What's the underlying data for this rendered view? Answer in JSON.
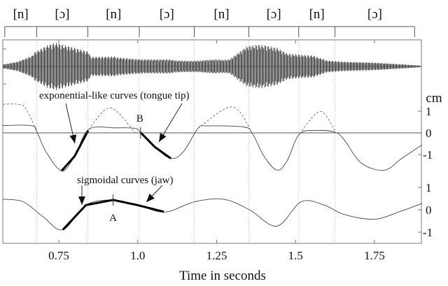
{
  "segments": {
    "labels": [
      "[n]",
      "[ɔ]",
      "[n]",
      "[ɔ]",
      "[n]",
      "[ɔ]",
      "[n]",
      "[ɔ]"
    ],
    "boundaries": [
      0.579,
      0.68,
      0.842,
      1.005,
      1.179,
      1.352,
      1.51,
      1.625,
      1.877
    ]
  },
  "chart_data": {
    "type": "line",
    "xlabel": "Time in seconds",
    "xlim": [
      0.573,
      1.9
    ],
    "xticks": [
      0.75,
      1.0,
      1.25,
      1.5,
      1.75
    ],
    "xtick_labels": [
      "0.75",
      "1.0",
      "1.25",
      "1.5",
      "1.75"
    ],
    "unit_label": "cm",
    "grid": "vertical dotted lines at segment boundaries",
    "waveform": {
      "t": [
        0.573,
        0.619,
        0.664,
        0.673,
        0.714,
        0.741,
        0.845,
        0.85,
        0.927,
        0.936,
        0.982,
        1.018,
        1.104,
        1.118,
        1.159,
        1.2,
        1.209,
        1.245,
        1.273,
        1.291,
        1.345,
        1.382,
        1.4,
        1.443,
        1.473,
        1.493,
        1.531,
        1.557,
        1.6,
        1.65,
        1.75,
        1.85,
        1.9
      ],
      "amplitude": [
        0.08,
        0.2,
        0.45,
        0.6,
        0.9,
        1.0,
        0.62,
        0.4,
        0.42,
        0.38,
        0.33,
        0.3,
        0.3,
        0.26,
        0.24,
        0.25,
        0.27,
        0.3,
        0.28,
        0.3,
        0.85,
        0.92,
        0.9,
        0.78,
        0.55,
        0.52,
        0.48,
        0.46,
        0.25,
        0.2,
        0.16,
        0.08,
        0.03
      ]
    },
    "tongue_tip": {
      "ylim": [
        -2,
        1.6
      ],
      "yticks": [
        1,
        0,
        -1
      ],
      "ytick_labels": [
        "1",
        "0",
        "-1"
      ],
      "t": [
        0.573,
        0.664,
        0.682,
        0.709,
        0.759,
        0.8,
        0.845,
        0.927,
        0.991,
        1.009,
        1.054,
        1.105,
        1.145,
        1.191,
        1.218,
        1.336,
        1.364,
        1.4,
        1.441,
        1.473,
        1.513,
        1.573,
        1.627,
        1.654,
        1.709,
        1.781,
        1.836,
        1.9
      ],
      "y": [
        0.34,
        0.33,
        0.0,
        -0.86,
        -1.75,
        -1.08,
        0.16,
        0.23,
        0.21,
        0.02,
        -0.65,
        -1.18,
        -0.86,
        0.21,
        0.32,
        0.27,
        -0.05,
        -1.08,
        -1.72,
        -1.29,
        -0.05,
        0.11,
        0.02,
        -0.32,
        -1.4,
        -1.72,
        -1.18,
        -0.56
      ],
      "highlighted_ranges": [
        [
          0.759,
          0.845
        ],
        [
          1.009,
          1.105
        ]
      ],
      "dashed_extensions": [
        {
          "t": [
            0.573,
            0.618,
            0.645,
            0.682
          ],
          "y": [
            1.32,
            1.32,
            1.13,
            0.0
          ]
        },
        {
          "t": [
            0.845,
            0.913,
            0.991
          ],
          "y": [
            0.16,
            1.15,
            0.02
          ]
        },
        {
          "t": [
            1.191,
            1.3,
            1.364
          ],
          "y": [
            0.21,
            1.2,
            -0.05
          ]
        },
        {
          "t": [
            1.513,
            1.578,
            1.627
          ],
          "y": [
            -0.05,
            0.99,
            0.02
          ]
        }
      ]
    },
    "jaw": {
      "ylim": [
        -1.5,
        1.3
      ],
      "yticks": [
        1,
        0,
        -1
      ],
      "ytick_labels": [
        "1",
        "0",
        "-1"
      ],
      "t": [
        0.573,
        0.637,
        0.7,
        0.763,
        0.836,
        0.922,
        0.999,
        1.086,
        1.181,
        1.272,
        1.354,
        1.441,
        1.518,
        1.591,
        1.654,
        1.75,
        1.836,
        1.9
      ],
      "y": [
        0.47,
        0.36,
        -0.31,
        -0.89,
        0.21,
        0.44,
        0.21,
        -0.1,
        0.36,
        0.47,
        0.0,
        -0.73,
        0.36,
        0.21,
        -0.21,
        -0.42,
        -0.05,
        0.28
      ],
      "highlighted_ranges": [
        [
          0.763,
          1.086
        ]
      ]
    },
    "annotations": {
      "tongue_label": "exponential-like curves (tongue tip)",
      "jaw_label": "sigmoidal curves (jaw)",
      "point_a": "A",
      "point_a_t": 0.922,
      "point_b": "B",
      "point_b_t": 1.009
    }
  }
}
